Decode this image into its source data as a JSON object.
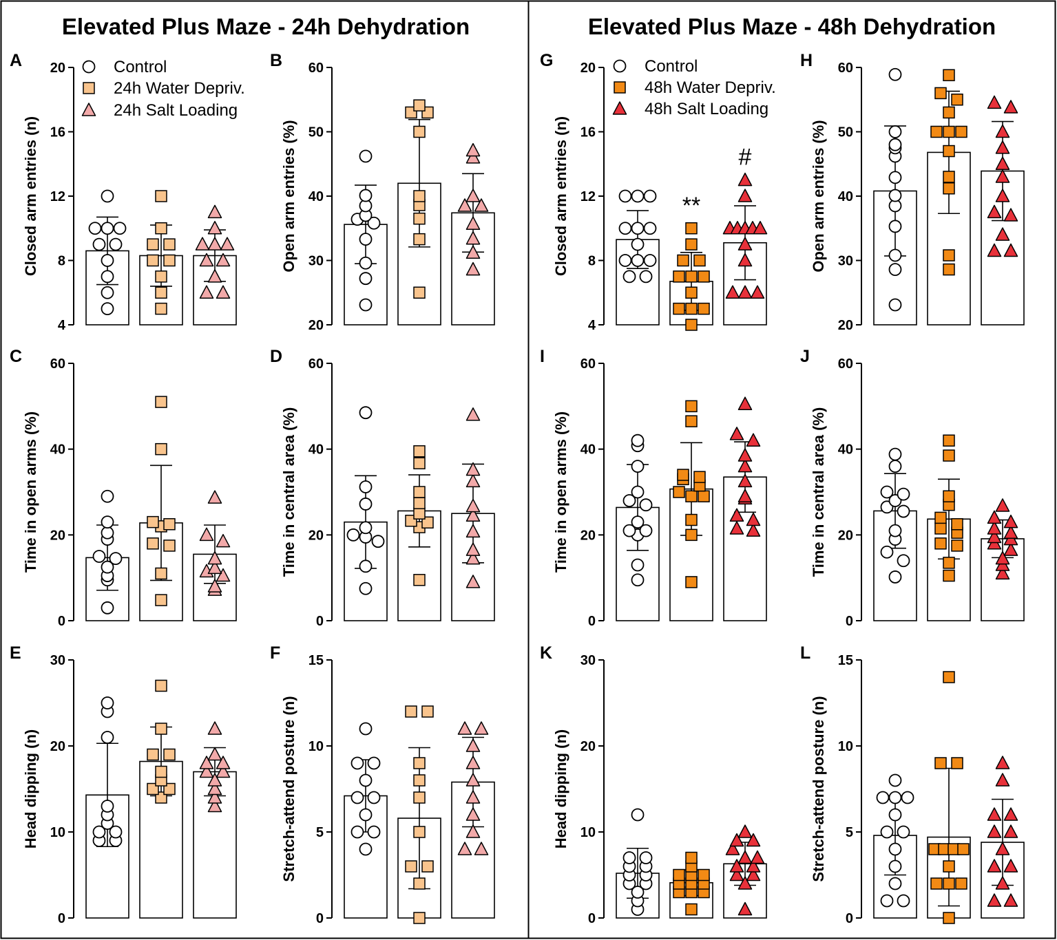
{
  "titles": {
    "left": "Elevated Plus Maze - 24h Dehydration",
    "right": "Elevated Plus Maze - 48h Dehydration"
  },
  "colors": {
    "control": "#ffffff",
    "wd24": "#f9c48d",
    "sl24": "#f2a9a9",
    "wd48": "#f28a15",
    "sl48": "#e8313a"
  },
  "legends": {
    "left": [
      "Control",
      "24h Water Depriv.",
      "24h Salt Loading"
    ],
    "right": [
      "Control",
      "48h Water Depriv.",
      "48h Salt Loading"
    ]
  },
  "chart_data": [
    {
      "panel": "A",
      "type": "bar",
      "ylabel": "Closed arm entries (n)",
      "ylim": [
        4,
        20
      ],
      "yticks": [
        4,
        8,
        12,
        16,
        20
      ],
      "groups": [
        {
          "name": "Control",
          "mean": 8.6,
          "sd": 2.1,
          "points": [
            12,
            10,
            10,
            10,
            9,
            9,
            8,
            7,
            6,
            5
          ]
        },
        {
          "name": "24h Water Depriv.",
          "mean": 8.3,
          "sd": 1.9,
          "points": [
            12,
            10,
            9,
            9,
            8,
            8,
            7,
            6,
            5
          ]
        },
        {
          "name": "24h Salt Loading",
          "mean": 8.3,
          "sd": 1.6,
          "points": [
            11,
            10,
            9,
            9,
            9,
            8,
            8,
            7,
            6,
            6
          ]
        }
      ]
    },
    {
      "panel": "B",
      "type": "bar",
      "ylabel": "Open arm entries (%)",
      "ylim": [
        20,
        60
      ],
      "yticks": [
        20,
        30,
        40,
        50,
        60
      ],
      "groups": [
        {
          "name": "Control",
          "mean": 35.6,
          "sd": 6.1,
          "points": [
            46.2,
            40.1,
            38.5,
            37.0,
            36.4,
            35.8,
            33.3,
            29.6,
            27.2,
            23.1
          ]
        },
        {
          "name": "24h Water Depriv.",
          "mean": 42.0,
          "sd": 9.9,
          "points": [
            54.1,
            53.0,
            53.0,
            50.0,
            40.0,
            38.6,
            36.5,
            33.3,
            25.0
          ]
        },
        {
          "name": "24h Salt Loading",
          "mean": 37.4,
          "sd": 6.1,
          "points": [
            47.1,
            46.0,
            40.0,
            38.5,
            38.5,
            35.7,
            33.4,
            31.2,
            28.6
          ]
        }
      ]
    },
    {
      "panel": "C",
      "type": "bar",
      "ylabel": "Time in open arms (%)",
      "ylim": [
        0,
        60
      ],
      "yticks": [
        0,
        20,
        40,
        60
      ],
      "groups": [
        {
          "name": "Control",
          "mean": 14.7,
          "sd": 7.6,
          "points": [
            29.0,
            23.0,
            20.5,
            19.0,
            15.0,
            14.5,
            12.5,
            10.5,
            9.5,
            3.0
          ]
        },
        {
          "name": "24h Water Depriv.",
          "mean": 22.8,
          "sd": 13.4,
          "points": [
            51.0,
            40.0,
            23.0,
            22.5,
            22.0,
            18.0,
            17.5,
            11.0,
            4.8
          ]
        },
        {
          "name": "24h Salt Loading",
          "mean": 15.5,
          "sd": 6.8,
          "points": [
            28.7,
            20.0,
            18.5,
            14.5,
            12.3,
            11.5,
            10.5,
            8.0,
            7.2
          ]
        }
      ]
    },
    {
      "panel": "D",
      "type": "bar",
      "ylabel": "Time in central area (%)",
      "ylim": [
        0,
        60
      ],
      "yticks": [
        0,
        20,
        40,
        60
      ],
      "groups": [
        {
          "name": "Control",
          "mean": 23.0,
          "sd": 10.8,
          "points": [
            48.5,
            31.2,
            27.2,
            21.7,
            20.0,
            19.5,
            18.5,
            12.7,
            7.5
          ]
        },
        {
          "name": "24h Water Depriv.",
          "mean": 25.6,
          "sd": 8.4,
          "points": [
            39.5,
            36.7,
            30.0,
            27.4,
            25.0,
            23.3,
            22.9,
            21.8,
            9.5
          ]
        },
        {
          "name": "24h Salt Loading",
          "mean": 25.0,
          "sd": 11.5,
          "points": [
            48.0,
            35.2,
            32.5,
            26.7,
            24.5,
            20.8,
            16.5,
            14.5,
            9.0
          ]
        }
      ]
    },
    {
      "panel": "E",
      "type": "bar",
      "ylabel": "Head dipping (n)",
      "ylim": [
        0,
        30
      ],
      "yticks": [
        0,
        10,
        20,
        30
      ],
      "groups": [
        {
          "name": "Control",
          "mean": 14.3,
          "sd": 6.0,
          "points": [
            25,
            24,
            21,
            13,
            12,
            11,
            10,
            10,
            9,
            9
          ]
        },
        {
          "name": "24h Water Depriv.",
          "mean": 18.2,
          "sd": 4.0,
          "points": [
            27,
            22,
            19,
            19,
            17,
            16,
            15,
            15,
            14
          ]
        },
        {
          "name": "24h Salt Loading",
          "mean": 17.0,
          "sd": 2.8,
          "points": [
            22,
            19,
            18,
            18,
            17,
            17,
            16,
            15,
            14,
            13
          ]
        }
      ]
    },
    {
      "panel": "F",
      "type": "bar",
      "ylabel": "Stretch-attend posture (n)",
      "ylim": [
        0,
        15
      ],
      "yticks": [
        0,
        5,
        10,
        15
      ],
      "groups": [
        {
          "name": "Control",
          "mean": 7.1,
          "sd": 2.1,
          "points": [
            11,
            9,
            9,
            8,
            7,
            7,
            6,
            5,
            5,
            4
          ]
        },
        {
          "name": "24h Water Depriv.",
          "mean": 5.8,
          "sd": 4.1,
          "points": [
            12,
            12,
            9,
            8,
            7,
            5,
            3,
            3,
            2,
            0
          ]
        },
        {
          "name": "24h Salt Loading",
          "mean": 7.9,
          "sd": 2.6,
          "points": [
            11,
            11,
            10,
            9,
            8,
            7,
            6,
            5,
            4,
            4
          ]
        }
      ]
    },
    {
      "panel": "G",
      "type": "bar",
      "ylabel": "Closed arm entries (n)",
      "ylim": [
        4,
        20
      ],
      "yticks": [
        4,
        8,
        12,
        16,
        20
      ],
      "annotations": [
        {
          "group": 1,
          "text": "**"
        },
        {
          "group": 2,
          "text": "#"
        }
      ],
      "groups": [
        {
          "name": "Control",
          "mean": 9.3,
          "sd": 1.8,
          "points": [
            12,
            12,
            12,
            10,
            10,
            10,
            9,
            8,
            8,
            8,
            7,
            7
          ]
        },
        {
          "name": "48h Water Depriv.",
          "mean": 6.7,
          "sd": 1.8,
          "points": [
            10,
            9,
            8,
            8,
            7,
            7,
            7,
            6,
            5,
            5,
            5,
            4
          ]
        },
        {
          "name": "48h Salt Loading",
          "mean": 9.1,
          "sd": 2.3,
          "points": [
            13,
            12,
            10,
            10,
            10,
            10,
            10,
            9,
            8,
            6,
            6,
            6
          ]
        }
      ]
    },
    {
      "panel": "H",
      "type": "bar",
      "ylabel": "Open arm entries (%)",
      "ylim": [
        20,
        60
      ],
      "yticks": [
        20,
        30,
        40,
        50,
        60
      ],
      "groups": [
        {
          "name": "Control",
          "mean": 40.8,
          "sd": 10.1,
          "points": [
            58.9,
            50.0,
            48.0,
            47.5,
            46.2,
            42.9,
            40.1,
            38.5,
            35.3,
            30.8,
            28.6,
            23.1
          ]
        },
        {
          "name": "48h Water Depriv.",
          "mean": 46.8,
          "sd": 9.5,
          "points": [
            58.8,
            56.0,
            55.0,
            53.0,
            50.0,
            50.0,
            50.0,
            47.0,
            43.0,
            41.2,
            30.8,
            28.6
          ]
        },
        {
          "name": "48h Salt Loading",
          "mean": 43.9,
          "sd": 7.7,
          "points": [
            54.5,
            53.8,
            50.0,
            47.5,
            45.0,
            43.0,
            40.0,
            37.5,
            37.0,
            34.0,
            31.5,
            31.5
          ]
        }
      ]
    },
    {
      "panel": "I",
      "type": "bar",
      "ylabel": "Time in open arms (%)",
      "ylim": [
        0,
        60
      ],
      "yticks": [
        0,
        20,
        40,
        60
      ],
      "groups": [
        {
          "name": "Control",
          "mean": 26.4,
          "sd": 10.0,
          "points": [
            42.0,
            40.8,
            36.0,
            30.0,
            28.0,
            27.0,
            23.0,
            21.0,
            21.0,
            20.0,
            13.0,
            9.5
          ]
        },
        {
          "name": "48h Water Depriv.",
          "mean": 30.7,
          "sd": 10.8,
          "points": [
            50.0,
            46.5,
            34.0,
            33.5,
            33.0,
            31.5,
            30.0,
            29.0,
            29.0,
            23.5,
            20.0,
            9.0
          ]
        },
        {
          "name": "48h Salt Loading",
          "mean": 33.5,
          "sd": 8.2,
          "points": [
            50.5,
            43.5,
            42.0,
            38.5,
            36.0,
            32.5,
            29.0,
            28.5,
            24.5,
            23.5,
            21.5,
            21.0
          ]
        }
      ]
    },
    {
      "panel": "J",
      "type": "bar",
      "ylabel": "Time in central area (%)",
      "ylim": [
        0,
        60
      ],
      "yticks": [
        0,
        20,
        40,
        60
      ],
      "groups": [
        {
          "name": "Control",
          "mean": 25.6,
          "sd": 8.7,
          "points": [
            38.8,
            36.0,
            30.0,
            29.5,
            28.0,
            26.5,
            25.5,
            21.0,
            19.0,
            16.0,
            14.0,
            10.2
          ]
        },
        {
          "name": "48h Water Depriv.",
          "mean": 23.7,
          "sd": 9.3,
          "points": [
            42.0,
            38.5,
            29.0,
            27.0,
            24.0,
            22.5,
            21.5,
            20.5,
            18.0,
            17.5,
            13.5,
            10.5
          ]
        },
        {
          "name": "48h Salt Loading",
          "mean": 19.1,
          "sd": 4.4,
          "points": [
            26.8,
            24.0,
            23.0,
            21.5,
            20.5,
            19.5,
            19.0,
            18.0,
            16.5,
            14.5,
            13.0,
            11.0
          ]
        }
      ]
    },
    {
      "panel": "K",
      "type": "bar",
      "ylabel": "Head dipping (n)",
      "ylim": [
        0,
        30
      ],
      "yticks": [
        0,
        10,
        20,
        30
      ],
      "groups": [
        {
          "name": "Control",
          "mean": 5.2,
          "sd": 2.9,
          "points": [
            12,
            7,
            7,
            6,
            6,
            5,
            5,
            4,
            4,
            3,
            2,
            1
          ]
        },
        {
          "name": "48h Water Depriv.",
          "mean": 4.1,
          "sd": 1.5,
          "points": [
            7,
            6,
            5,
            5,
            5,
            4,
            4,
            4,
            3,
            3,
            3,
            1
          ]
        },
        {
          "name": "48h Salt Loading",
          "mean": 6.3,
          "sd": 2.5,
          "points": [
            10,
            9,
            9,
            8,
            7,
            7,
            6,
            6,
            5,
            5,
            4,
            1
          ]
        }
      ]
    },
    {
      "panel": "L",
      "type": "bar",
      "ylabel": "Stretch-attend posture (n)",
      "ylim": [
        0,
        15
      ],
      "yticks": [
        0,
        5,
        10,
        15
      ],
      "groups": [
        {
          "name": "Control",
          "mean": 4.8,
          "sd": 2.3,
          "points": [
            8,
            7,
            7,
            7,
            6,
            5,
            5,
            4,
            3,
            2,
            1,
            1
          ]
        },
        {
          "name": "48h Water Depriv.",
          "mean": 4.7,
          "sd": 4.0,
          "points": [
            14,
            9,
            9,
            4,
            4,
            4,
            4,
            3,
            2,
            2,
            2,
            0
          ]
        },
        {
          "name": "48h Salt Loading",
          "mean": 4.4,
          "sd": 2.5,
          "points": [
            9,
            8,
            6,
            6,
            5,
            5,
            4,
            3,
            3,
            2,
            1,
            1
          ]
        }
      ]
    }
  ]
}
